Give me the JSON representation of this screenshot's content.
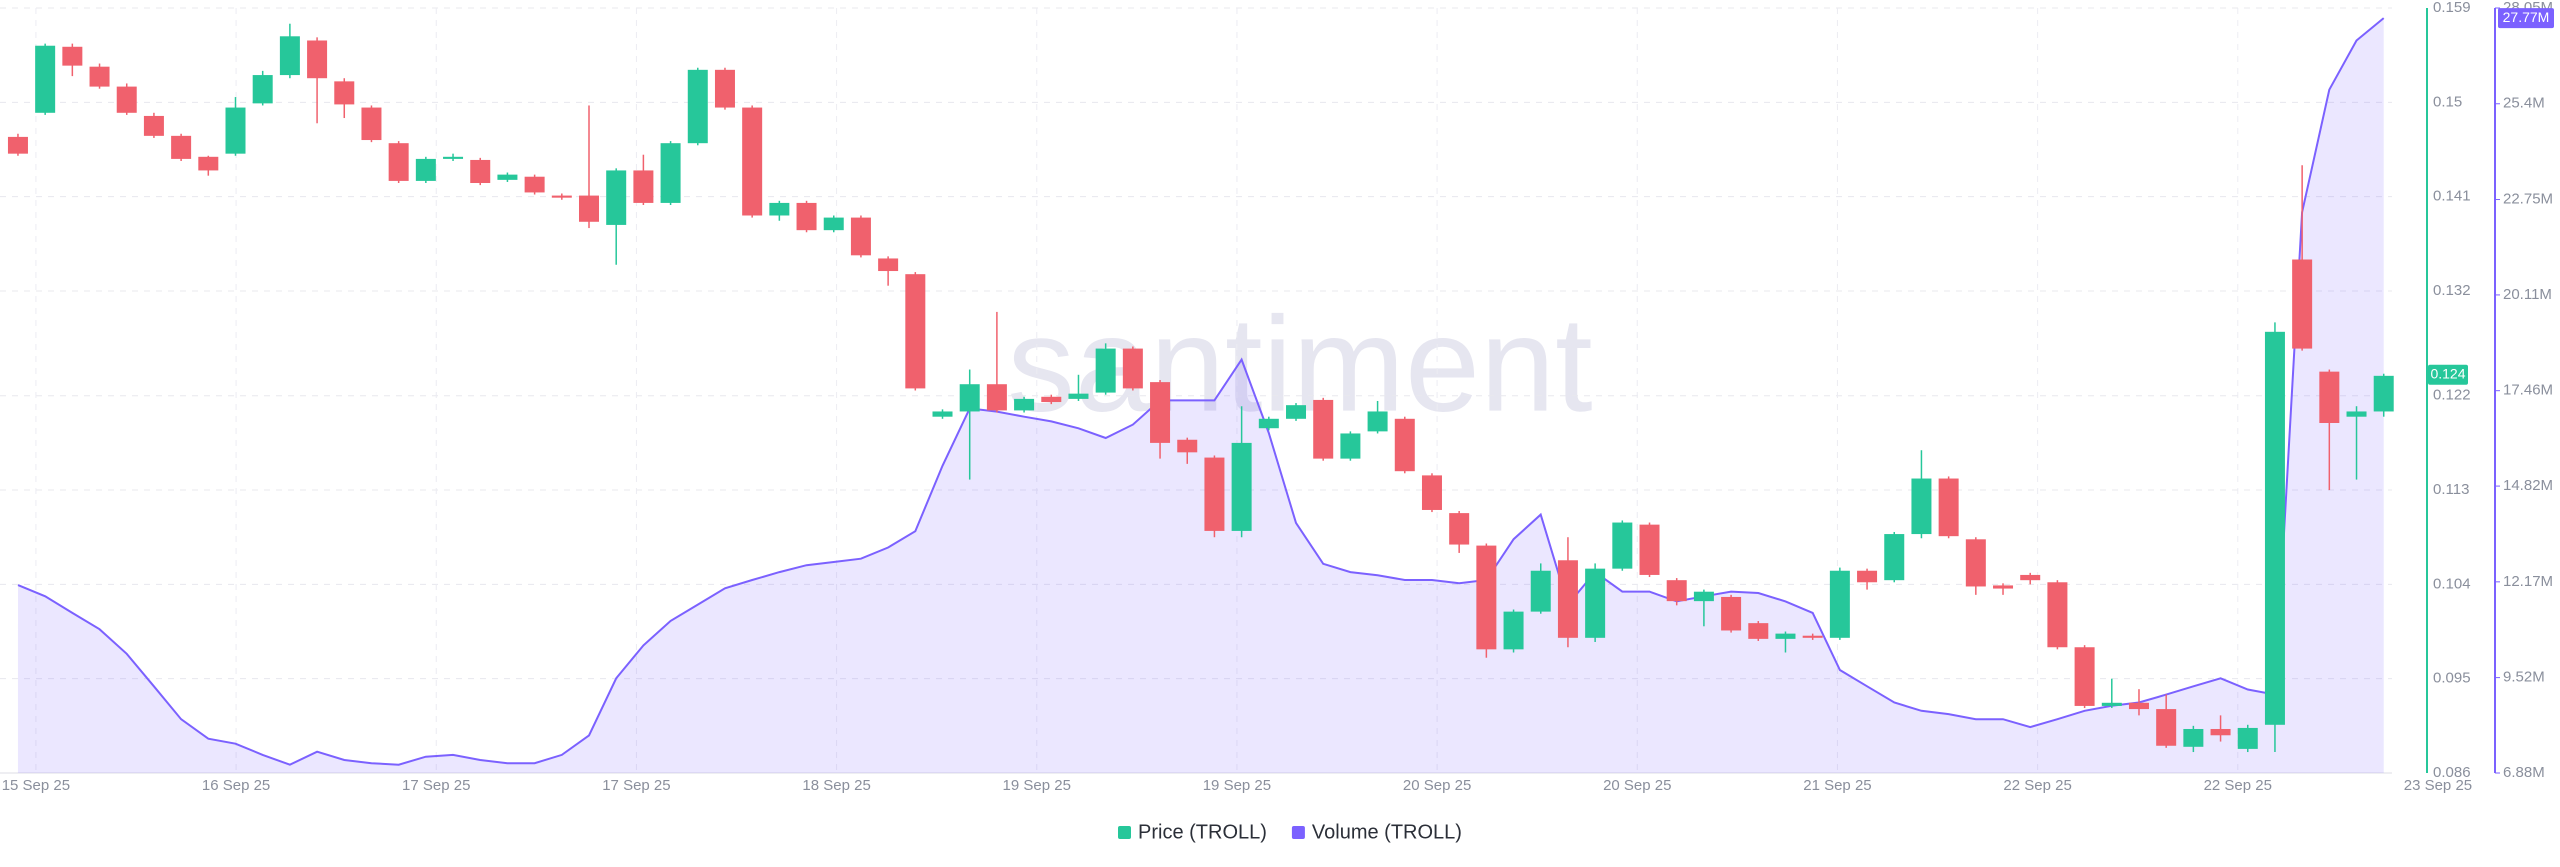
{
  "chart_data": {
    "type": "candlestick",
    "watermark": "santiment",
    "x_labels": [
      "15 Sep 25",
      "16 Sep 25",
      "17 Sep 25",
      "17 Sep 25",
      "18 Sep 25",
      "19 Sep 25",
      "19 Sep 25",
      "20 Sep 25",
      "20 Sep 25",
      "21 Sep 25",
      "22 Sep 25",
      "22 Sep 25",
      "23 Sep 25"
    ],
    "grid": true,
    "ylim": [
      0.086,
      0.159
    ],
    "yticks": [
      0.086,
      0.095,
      0.104,
      0.113,
      0.122,
      0.132,
      0.141,
      0.15,
      0.159
    ],
    "y2lim": [
      6880000,
      28050000
    ],
    "y2ticks": [
      {
        "value": 6880000,
        "label": "6.88M"
      },
      {
        "value": 9520000,
        "label": "9.52M"
      },
      {
        "value": 12170000,
        "label": "12.17M"
      },
      {
        "value": 14820000,
        "label": "14.82M"
      },
      {
        "value": 17460000,
        "label": "17.46M"
      },
      {
        "value": 20110000,
        "label": "20.11M"
      },
      {
        "value": 22750000,
        "label": "22.75M"
      },
      {
        "value": 25400000,
        "label": "25.4M"
      },
      {
        "value": 28050000,
        "label": "28.05M"
      }
    ],
    "series": [
      {
        "name": "Price (TROLL)",
        "type": "candlestick",
        "color": "#26c79a",
        "up_color": "#26c79a",
        "down_color": "#f0616d",
        "last_value": 0.124,
        "open": [
          0.1467,
          0.149,
          0.1553,
          0.1534,
          0.1515,
          0.1487,
          0.1468,
          0.1448,
          0.1451,
          0.1499,
          0.1526,
          0.1559,
          0.152,
          0.1495,
          0.1461,
          0.1425,
          0.1446,
          0.1445,
          0.1426,
          0.1429,
          0.1411,
          0.1411,
          0.1383,
          0.1435,
          0.1404,
          0.1461,
          0.1531,
          0.1495,
          0.1392,
          0.1404,
          0.1378,
          0.139,
          0.1351,
          0.1336,
          0.12,
          0.1205,
          0.1231,
          0.1206,
          0.1219,
          0.1217,
          0.1223,
          0.1265,
          0.1233,
          0.1178,
          0.1161,
          0.1091,
          0.1189,
          0.1198,
          0.1216,
          0.116,
          0.1186,
          0.1198,
          0.1144,
          0.1108,
          0.1077,
          0.0978,
          0.1014,
          0.1063,
          0.0989,
          0.1055,
          0.1097,
          0.1044,
          0.1024,
          0.1028,
          0.1003,
          0.0988,
          0.0991,
          0.0989,
          0.1053,
          0.1044,
          0.1088,
          0.1141,
          0.1083,
          0.1039,
          0.1049,
          0.1042,
          0.098,
          0.0924,
          0.0927,
          0.0921,
          0.0885,
          0.0902,
          0.0883,
          0.0906,
          0.135,
          0.1243,
          0.12,
          0.1205
        ],
        "high": [
          0.147,
          0.1556,
          0.1556,
          0.1537,
          0.1518,
          0.149,
          0.147,
          0.1449,
          0.1505,
          0.153,
          0.1575,
          0.1562,
          0.1523,
          0.1497,
          0.1463,
          0.1448,
          0.1451,
          0.1447,
          0.1433,
          0.1431,
          0.1413,
          0.1497,
          0.1437,
          0.145,
          0.1463,
          0.1533,
          0.1533,
          0.1497,
          0.1406,
          0.1406,
          0.1392,
          0.1392,
          0.1353,
          0.1338,
          0.1207,
          0.1245,
          0.13,
          0.1219,
          0.1221,
          0.124,
          0.127,
          0.1267,
          0.1235,
          0.118,
          0.1163,
          0.121,
          0.12,
          0.1213,
          0.1218,
          0.1186,
          0.1215,
          0.12,
          0.1146,
          0.111,
          0.1079,
          0.1016,
          0.106,
          0.1085,
          0.106,
          0.1101,
          0.1099,
          0.1046,
          0.1035,
          0.103,
          0.1005,
          0.0995,
          0.0993,
          0.1056,
          0.1055,
          0.109,
          0.1168,
          0.1143,
          0.1085,
          0.1041,
          0.1051,
          0.1044,
          0.0982,
          0.095,
          0.094,
          0.0935,
          0.0905,
          0.0915,
          0.0906,
          0.129,
          0.144,
          0.1245,
          0.121,
          0.1241
        ],
        "low": [
          0.1449,
          0.1488,
          0.1525,
          0.1513,
          0.1488,
          0.1466,
          0.1444,
          0.143,
          0.1449,
          0.1497,
          0.1523,
          0.148,
          0.1485,
          0.1462,
          0.1423,
          0.1423,
          0.1444,
          0.1421,
          0.1424,
          0.1412,
          0.1407,
          0.138,
          0.1345,
          0.1402,
          0.1402,
          0.1459,
          0.1493,
          0.139,
          0.1387,
          0.1376,
          0.1376,
          0.1352,
          0.1325,
          0.1225,
          0.1198,
          0.114,
          0.1204,
          0.1204,
          0.1212,
          0.1215,
          0.1221,
          0.1225,
          0.116,
          0.1155,
          0.1085,
          0.1085,
          0.1187,
          0.1196,
          0.1158,
          0.1158,
          0.1184,
          0.1146,
          0.1109,
          0.107,
          0.097,
          0.0975,
          0.1012,
          0.098,
          0.0985,
          0.1053,
          0.1047,
          0.102,
          0.1,
          0.0994,
          0.0986,
          0.0975,
          0.0987,
          0.0987,
          0.1035,
          0.1042,
          0.1084,
          0.1084,
          0.103,
          0.103,
          0.104,
          0.0978,
          0.0922,
          0.0922,
          0.0915,
          0.0884,
          0.088,
          0.089,
          0.088,
          0.088,
          0.1263,
          0.113,
          0.114,
          0.12
        ],
        "close": [
          0.1451,
          0.1554,
          0.1535,
          0.1515,
          0.149,
          0.1468,
          0.1446,
          0.1435,
          0.1495,
          0.1526,
          0.1563,
          0.1523,
          0.1498,
          0.1464,
          0.1425,
          0.1446,
          0.1448,
          0.1423,
          0.1431,
          0.1414,
          0.1409,
          0.1386,
          0.1435,
          0.1404,
          0.1461,
          0.1531,
          0.1495,
          0.1392,
          0.1404,
          0.1378,
          0.139,
          0.1354,
          0.1339,
          0.1227,
          0.1205,
          0.1231,
          0.1206,
          0.1217,
          0.1214,
          0.1222,
          0.1265,
          0.1227,
          0.1175,
          0.1166,
          0.1091,
          0.1175,
          0.1198,
          0.1211,
          0.116,
          0.1184,
          0.1205,
          0.1148,
          0.1111,
          0.1078,
          0.0978,
          0.1014,
          0.1053,
          0.0989,
          0.1055,
          0.1099,
          0.1049,
          0.1024,
          0.1033,
          0.0996,
          0.0988,
          0.0993,
          0.0989,
          0.1053,
          0.1042,
          0.1088,
          0.1141,
          0.1086,
          0.1038,
          0.1036,
          0.1044,
          0.098,
          0.0924,
          0.0927,
          0.0921,
          0.0886,
          0.0902,
          0.0896,
          0.0903,
          0.1281,
          0.1265,
          0.1194,
          0.1205,
          0.1239
        ]
      },
      {
        "name": "Volume (TROLL)",
        "type": "area",
        "color": "#7b61ff",
        "axis": "y2",
        "last_value": 27770000,
        "last_label": "27.77M",
        "values": [
          12080000,
          11770000,
          11310000,
          10860000,
          10180000,
          9280000,
          8370000,
          7830000,
          7690000,
          7380000,
          7110000,
          7470000,
          7240000,
          7150000,
          7110000,
          7330000,
          7380000,
          7240000,
          7150000,
          7150000,
          7380000,
          7920000,
          9500000,
          10410000,
          11090000,
          11540000,
          11990000,
          12220000,
          12440000,
          12630000,
          12720000,
          12810000,
          13120000,
          13570000,
          15380000,
          16970000,
          16880000,
          16740000,
          16610000,
          16420000,
          16150000,
          16520000,
          17190000,
          17190000,
          17190000,
          18320000,
          16290000,
          13800000,
          12670000,
          12440000,
          12350000,
          12220000,
          12220000,
          12130000,
          12220000,
          13350000,
          14030000,
          11540000,
          12440000,
          11900000,
          11900000,
          11630000,
          11770000,
          11900000,
          11860000,
          11630000,
          11310000,
          9730000,
          9280000,
          8830000,
          8600000,
          8510000,
          8370000,
          8370000,
          8150000,
          8370000,
          8600000,
          8740000,
          8830000,
          9050000,
          9280000,
          9500000,
          9190000,
          9050000,
          22400000,
          25790000,
          27150000,
          27770000
        ]
      }
    ]
  }
}
